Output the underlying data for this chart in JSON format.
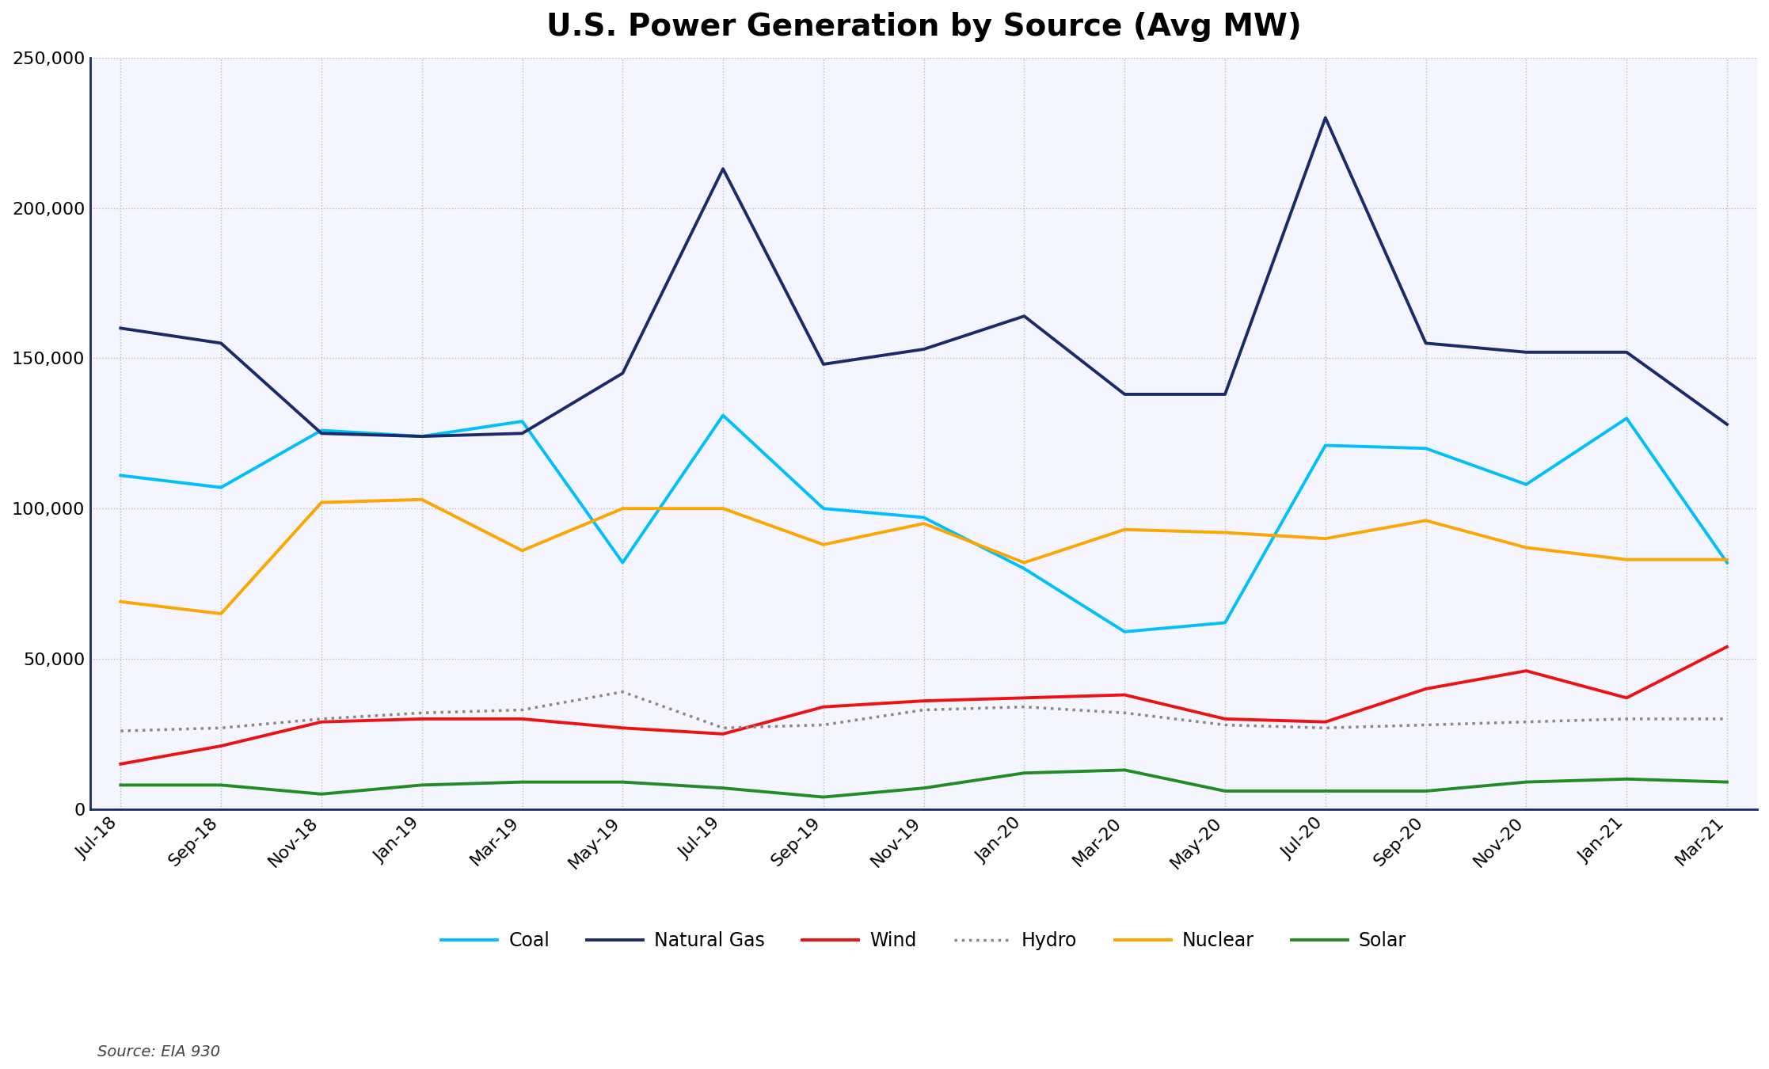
{
  "title": "U.S. Power Generation by Source (Avg MW)",
  "source": "Source: EIA 930",
  "x_labels": [
    "Jul-18",
    "Sep-18",
    "Nov-18",
    "Jan-19",
    "Mar-19",
    "May-19",
    "Jul-19",
    "Sep-19",
    "Nov-19",
    "Jan-20",
    "Mar-20",
    "May-20",
    "Jul-20",
    "Sep-20",
    "Nov-20",
    "Jan-21",
    "Mar-21"
  ],
  "coal_vals": [
    111000,
    107000,
    126000,
    124000,
    129000,
    82000,
    131000,
    100000,
    97000,
    80000,
    59000,
    62000,
    121000,
    120000,
    108000,
    130000,
    82000
  ],
  "natgas_vals": [
    160000,
    155000,
    125000,
    124000,
    125000,
    145000,
    213000,
    148000,
    153000,
    164000,
    138000,
    138000,
    230000,
    155000,
    152000,
    152000,
    128000
  ],
  "wind_vals": [
    15000,
    21000,
    29000,
    30000,
    30000,
    27000,
    25000,
    34000,
    36000,
    37000,
    38000,
    30000,
    29000,
    40000,
    46000,
    37000,
    54000
  ],
  "hydro_vals": [
    26000,
    27000,
    30000,
    32000,
    33000,
    39000,
    27000,
    28000,
    33000,
    34000,
    32000,
    28000,
    27000,
    28000,
    29000,
    30000,
    30000
  ],
  "nuclear_vals": [
    69000,
    65000,
    102000,
    103000,
    86000,
    100000,
    100000,
    88000,
    95000,
    82000,
    93000,
    92000,
    90000,
    96000,
    87000,
    83000,
    83000
  ],
  "solar_vals": [
    8000,
    8000,
    5000,
    8000,
    9000,
    9000,
    7000,
    4000,
    7000,
    12000,
    13000,
    6000,
    6000,
    6000,
    9000,
    10000,
    9000
  ],
  "coal_color": "#00BFFF",
  "natgas_color": "#1B2A6B",
  "wind_color": "#EE1111",
  "hydro_color": "#888888",
  "nuclear_color": "#FFA500",
  "solar_color": "#228B22",
  "linewidth": 2.8,
  "hydro_linewidth": 2.5,
  "ylim": [
    0,
    250000
  ],
  "yticks": [
    0,
    50000,
    100000,
    150000,
    200000,
    250000
  ],
  "background_color": "#FFFFFF",
  "plot_bg_color": "#F5F5FF",
  "grid_color": "#BBBBBB",
  "title_fontsize": 28,
  "legend_fontsize": 17,
  "tick_fontsize": 16,
  "source_fontsize": 14
}
